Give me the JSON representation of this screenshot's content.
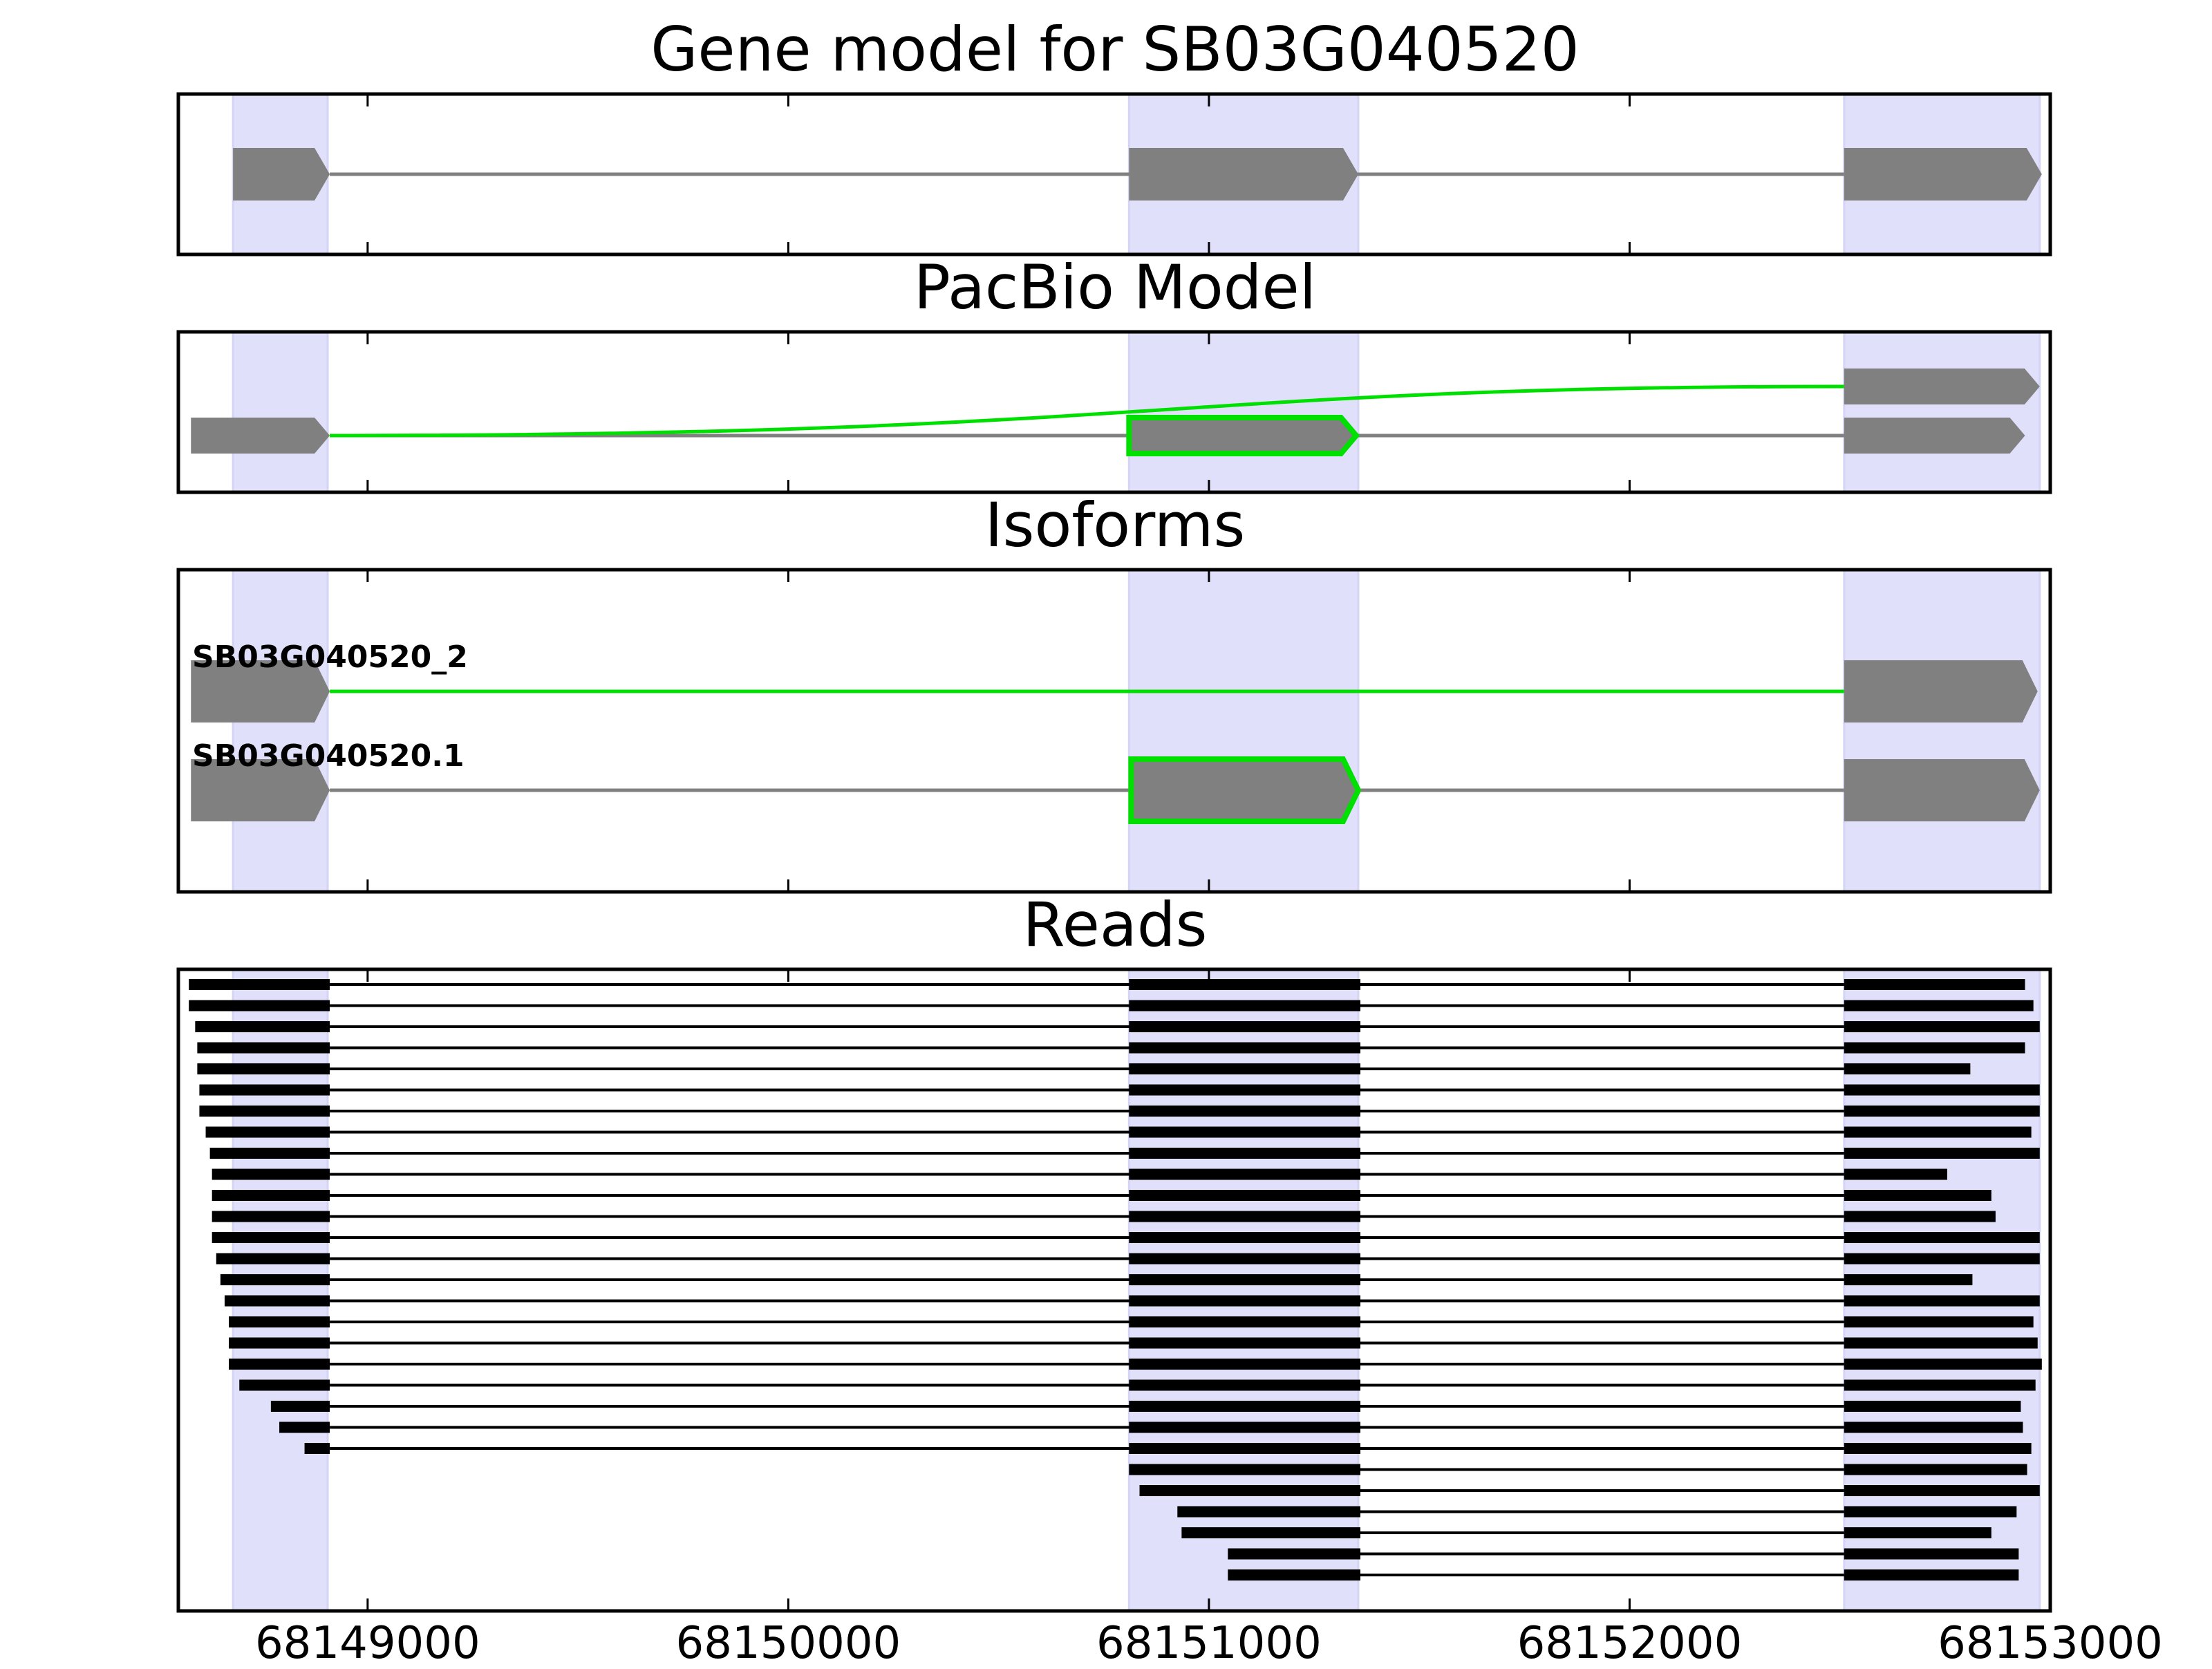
{
  "figure": {
    "panels": [
      {
        "key": "gene",
        "title": "Gene model for SB03G040520"
      },
      {
        "key": "pacbio",
        "title": "PacBio Model"
      },
      {
        "key": "iso",
        "title": "Isoforms"
      },
      {
        "key": "reads",
        "title": "Reads"
      }
    ],
    "x_axis": {
      "min": 68148550,
      "max": 68153000,
      "ticks": [
        {
          "value": 68149000,
          "label": "68149000"
        },
        {
          "value": 68150000,
          "label": "68150000"
        },
        {
          "value": 68151000,
          "label": "68151000"
        },
        {
          "value": 68152000,
          "label": "68152000"
        },
        {
          "value": 68153000,
          "label": "68153000"
        }
      ]
    },
    "colors": {
      "exon": "#808080",
      "intron": "#808080",
      "highlight": "#00e000",
      "shade": "#e0e0fb",
      "read": "#000000"
    }
  },
  "chart_data": {
    "type": "gene_model_tracks",
    "shaded_exon_regions": [
      [
        68148680,
        68148905
      ],
      [
        68150810,
        68151355
      ],
      [
        68152510,
        68152975
      ]
    ],
    "gene_model": {
      "name": "SB03G040520",
      "exons": [
        [
          68148680,
          68148910
        ],
        [
          68150810,
          68151355
        ],
        [
          68152510,
          68152980
        ]
      ]
    },
    "pacbio_model": {
      "upper": {
        "exons": [
          [
            68152510,
            68152975
          ]
        ]
      },
      "lower": {
        "exons": [
          [
            68148580,
            68148910
          ],
          [
            68150810,
            68151350
          ],
          [
            68152510,
            68152940
          ]
        ],
        "highlighted_exon": [
          68150810,
          68151350
        ]
      },
      "skip_junction": [
        68148910,
        68152510
      ]
    },
    "isoforms": [
      {
        "name": "SB03G040520_2",
        "exons": [
          [
            68148580,
            68148910
          ],
          [
            68152510,
            68152970
          ]
        ],
        "novel_junction": true
      },
      {
        "name": "SB03G040520.1",
        "exons": [
          [
            68148580,
            68148910
          ],
          [
            68150815,
            68151355
          ],
          [
            68152510,
            68152975
          ]
        ],
        "highlighted_exon": [
          68150815,
          68151355
        ]
      }
    ],
    "reads": [
      {
        "exons": [
          [
            68148575,
            68148910
          ],
          [
            68150810,
            68151360
          ],
          [
            68152510,
            68152940
          ]
        ]
      },
      {
        "exons": [
          [
            68148575,
            68148910
          ],
          [
            68150810,
            68151360
          ],
          [
            68152510,
            68152960
          ]
        ]
      },
      {
        "exons": [
          [
            68148590,
            68148910
          ],
          [
            68150810,
            68151360
          ],
          [
            68152510,
            68152975
          ]
        ]
      },
      {
        "exons": [
          [
            68148595,
            68148910
          ],
          [
            68150810,
            68151360
          ],
          [
            68152510,
            68152940
          ]
        ]
      },
      {
        "exons": [
          [
            68148595,
            68148910
          ],
          [
            68150810,
            68151360
          ],
          [
            68152510,
            68152810
          ]
        ]
      },
      {
        "exons": [
          [
            68148600,
            68148910
          ],
          [
            68150810,
            68151360
          ],
          [
            68152510,
            68152975
          ]
        ]
      },
      {
        "exons": [
          [
            68148600,
            68148910
          ],
          [
            68150810,
            68151360
          ],
          [
            68152510,
            68152975
          ]
        ]
      },
      {
        "exons": [
          [
            68148615,
            68148910
          ],
          [
            68150810,
            68151360
          ],
          [
            68152510,
            68152955
          ]
        ]
      },
      {
        "exons": [
          [
            68148625,
            68148910
          ],
          [
            68150810,
            68151360
          ],
          [
            68152510,
            68152975
          ]
        ]
      },
      {
        "exons": [
          [
            68148630,
            68148910
          ],
          [
            68150810,
            68151360
          ],
          [
            68152510,
            68152755
          ]
        ]
      },
      {
        "exons": [
          [
            68148630,
            68148910
          ],
          [
            68150810,
            68151360
          ],
          [
            68152510,
            68152860
          ]
        ]
      },
      {
        "exons": [
          [
            68148630,
            68148910
          ],
          [
            68150810,
            68151360
          ],
          [
            68152510,
            68152870
          ]
        ]
      },
      {
        "exons": [
          [
            68148630,
            68148910
          ],
          [
            68150810,
            68151360
          ],
          [
            68152510,
            68152975
          ]
        ]
      },
      {
        "exons": [
          [
            68148640,
            68148910
          ],
          [
            68150810,
            68151360
          ],
          [
            68152510,
            68152975
          ]
        ]
      },
      {
        "exons": [
          [
            68148650,
            68148910
          ],
          [
            68150810,
            68151360
          ],
          [
            68152510,
            68152815
          ]
        ]
      },
      {
        "exons": [
          [
            68148660,
            68148910
          ],
          [
            68150810,
            68151360
          ],
          [
            68152510,
            68152975
          ]
        ]
      },
      {
        "exons": [
          [
            68148670,
            68148910
          ],
          [
            68150810,
            68151360
          ],
          [
            68152510,
            68152960
          ]
        ]
      },
      {
        "exons": [
          [
            68148670,
            68148910
          ],
          [
            68150810,
            68151360
          ],
          [
            68152510,
            68152970
          ]
        ]
      },
      {
        "exons": [
          [
            68148670,
            68148910
          ],
          [
            68150810,
            68151360
          ],
          [
            68152510,
            68152980
          ]
        ]
      },
      {
        "exons": [
          [
            68148695,
            68148910
          ],
          [
            68150810,
            68151360
          ],
          [
            68152510,
            68152965
          ]
        ]
      },
      {
        "exons": [
          [
            68148770,
            68148910
          ],
          [
            68150810,
            68151360
          ],
          [
            68152510,
            68152930
          ]
        ]
      },
      {
        "exons": [
          [
            68148790,
            68148910
          ],
          [
            68150810,
            68151360
          ],
          [
            68152510,
            68152935
          ]
        ]
      },
      {
        "exons": [
          [
            68148850,
            68148910
          ],
          [
            68150810,
            68151360
          ],
          [
            68152510,
            68152955
          ]
        ]
      },
      {
        "exons": [
          [
            68150810,
            68151360
          ],
          [
            68152510,
            68152945
          ]
        ]
      },
      {
        "exons": [
          [
            68150835,
            68151360
          ],
          [
            68152510,
            68152975
          ]
        ]
      },
      {
        "exons": [
          [
            68150925,
            68151360
          ],
          [
            68152510,
            68152920
          ]
        ]
      },
      {
        "exons": [
          [
            68150935,
            68151360
          ],
          [
            68152510,
            68152860
          ]
        ]
      },
      {
        "exons": [
          [
            68151045,
            68151360
          ],
          [
            68152510,
            68152925
          ]
        ]
      },
      {
        "exons": [
          [
            68151045,
            68151360
          ],
          [
            68152510,
            68152925
          ]
        ]
      }
    ]
  }
}
